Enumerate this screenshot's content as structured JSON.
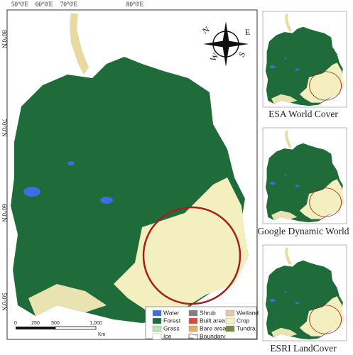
{
  "map": {
    "lon_labels": [
      "50°0'E",
      "60°0'E",
      "70°0'E",
      "80°0'E"
    ],
    "lat_labels": [
      "80°0'N",
      "70°0'N",
      "60°0'N",
      "50°0'N"
    ],
    "compass": {
      "n": "N",
      "e": "E",
      "s": "S",
      "w": "W"
    },
    "legend": [
      {
        "label": "Water",
        "color": "#3d6ee0"
      },
      {
        "label": "Shrub",
        "color": "#808080"
      },
      {
        "label": "Wetland",
        "color": "#e8c9a8"
      },
      {
        "label": "Forest",
        "color": "#1f6b3a"
      },
      {
        "label": "Built area",
        "color": "#e0463c"
      },
      {
        "label": "Crop",
        "color": "#f7f3c0"
      },
      {
        "label": "Grass",
        "color": "#b8e6b0"
      },
      {
        "label": "Bare area",
        "color": "#e0b060"
      },
      {
        "label": "Tundra",
        "color": "#7c8a3a"
      },
      {
        "label": "Ice",
        "color": "#ffffff"
      },
      {
        "label": "Boundary"
      }
    ],
    "scale": {
      "ticks": [
        "0",
        "250",
        "500",
        "1,000"
      ],
      "unit": "Km"
    }
  },
  "panels": [
    {
      "title": "ESA World Cover"
    },
    {
      "title": "Google Dynamic World"
    },
    {
      "title": "ESRI LandCover"
    }
  ]
}
